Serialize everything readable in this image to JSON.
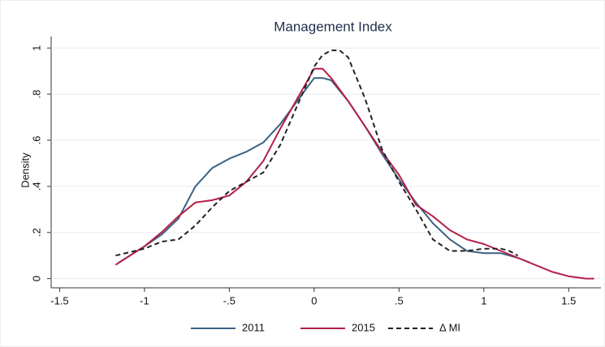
{
  "chart_data": {
    "type": "line",
    "title": "Management Index",
    "y_label": "Density",
    "xlim": [
      -1.55,
      1.69
    ],
    "ylim": [
      -0.04,
      1.05
    ],
    "xticks": [
      -1.5,
      -1,
      {
        "value": -0.5,
        "label": "-.5"
      },
      0,
      {
        "value": 0.5,
        "label": ".5"
      },
      1,
      1.5
    ],
    "yticks": [
      0,
      {
        "value": 0.2,
        "label": ".2"
      },
      {
        "value": 0.4,
        "label": ".4"
      },
      {
        "value": 0.6,
        "label": ".6"
      },
      {
        "value": 0.8,
        "label": ".8"
      },
      1
    ],
    "grid": true,
    "legend": "bottom",
    "series": [
      {
        "name": "2011",
        "color": "#3b6182",
        "line_style": "solid",
        "x": [
          -1.15,
          -1.0,
          -0.9,
          -0.8,
          -0.7,
          -0.6,
          -0.5,
          -0.4,
          -0.3,
          -0.2,
          -0.1,
          0,
          0.05,
          0.1,
          0.2,
          0.3,
          0.4,
          0.5,
          0.6,
          0.7,
          0.8,
          0.9,
          1.0,
          1.1,
          1.2,
          1.27
        ],
        "values": [
          0.07,
          0.14,
          0.19,
          0.26,
          0.4,
          0.48,
          0.52,
          0.55,
          0.59,
          0.67,
          0.77,
          0.87,
          0.87,
          0.86,
          0.77,
          0.66,
          0.54,
          0.43,
          0.33,
          0.24,
          0.17,
          0.12,
          0.11,
          0.11,
          0.09,
          0.07
        ]
      },
      {
        "name": "2015",
        "color": "#b41f48",
        "line_style": "solid",
        "x": [
          -1.17,
          -1.0,
          -0.9,
          -0.8,
          -0.7,
          -0.6,
          -0.5,
          -0.4,
          -0.3,
          -0.2,
          -0.1,
          0,
          0.05,
          0.1,
          0.2,
          0.3,
          0.4,
          0.5,
          0.6,
          0.7,
          0.8,
          0.9,
          1.0,
          1.1,
          1.2,
          1.3,
          1.4,
          1.5,
          1.6,
          1.65
        ],
        "values": [
          0.06,
          0.14,
          0.2,
          0.27,
          0.33,
          0.34,
          0.36,
          0.42,
          0.51,
          0.65,
          0.78,
          0.91,
          0.91,
          0.87,
          0.77,
          0.66,
          0.55,
          0.45,
          0.32,
          0.27,
          0.21,
          0.17,
          0.15,
          0.12,
          0.09,
          0.06,
          0.03,
          0.01,
          0,
          0
        ]
      },
      {
        "name": "Δ MI",
        "color": "#222222",
        "line_style": "dashed",
        "x": [
          -1.17,
          -1.0,
          -0.9,
          -0.8,
          -0.7,
          -0.6,
          -0.5,
          -0.4,
          -0.3,
          -0.2,
          -0.1,
          0,
          0.05,
          0.1,
          0.15,
          0.2,
          0.3,
          0.4,
          0.5,
          0.6,
          0.7,
          0.8,
          0.9,
          1.0,
          1.1,
          1.15,
          1.2
        ],
        "values": [
          0.1,
          0.13,
          0.16,
          0.17,
          0.23,
          0.31,
          0.38,
          0.42,
          0.46,
          0.58,
          0.75,
          0.92,
          0.97,
          0.99,
          0.99,
          0.96,
          0.78,
          0.56,
          0.42,
          0.3,
          0.17,
          0.12,
          0.12,
          0.13,
          0.13,
          0.12,
          0.1
        ]
      }
    ]
  }
}
